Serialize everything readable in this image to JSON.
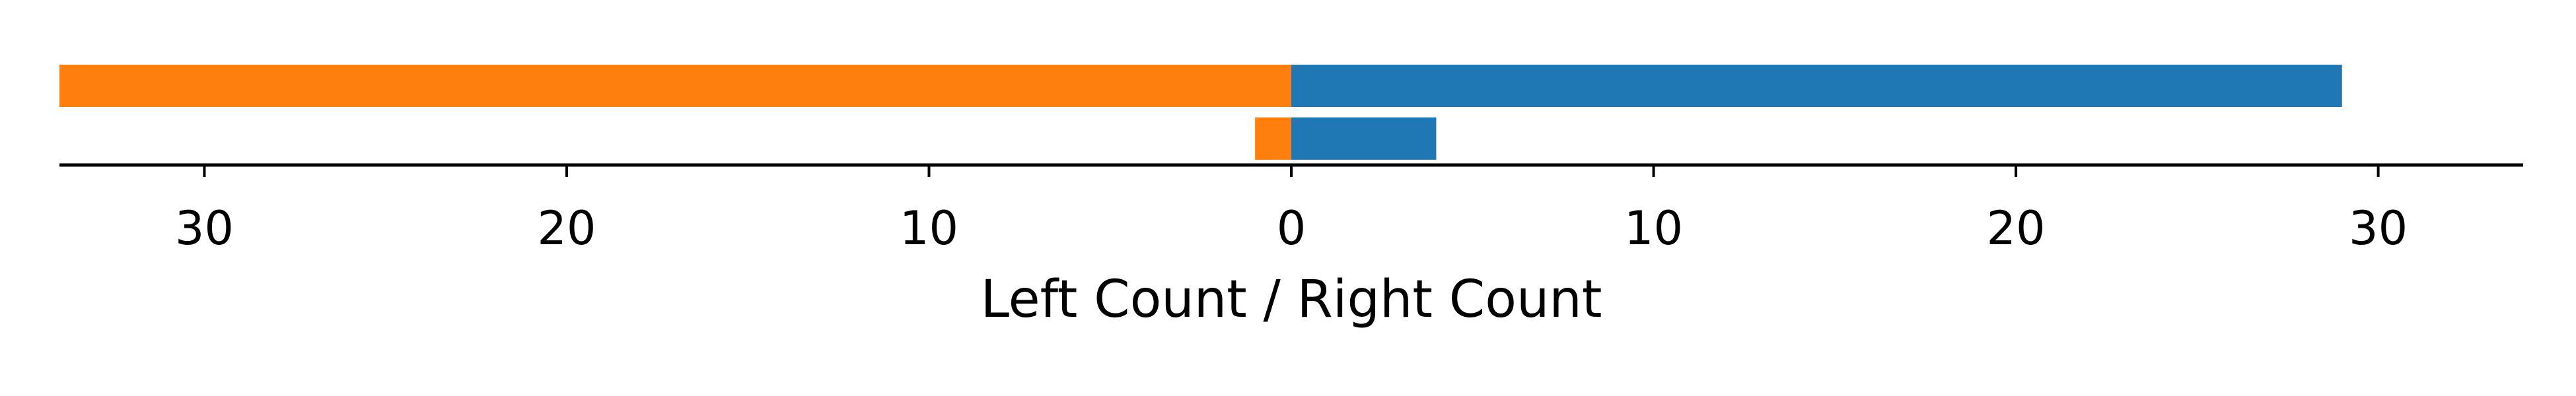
{
  "chart_data": {
    "type": "bar",
    "orientation": "horizontal-diverging",
    "xlabel": "Left Count / Right Count",
    "xlim": [
      -34,
      34
    ],
    "ticks": [
      -30,
      -20,
      -10,
      0,
      10,
      20,
      30
    ],
    "tick_labels": [
      "30",
      "20",
      "10",
      "0",
      "10",
      "20",
      "30"
    ],
    "grid": false,
    "rows": [
      {
        "left": 34,
        "right": 29
      },
      {
        "left": 1,
        "right": 4
      }
    ],
    "colors": {
      "left": "#ff7f0e",
      "right": "#1f77b4",
      "axis": "#000000"
    }
  }
}
